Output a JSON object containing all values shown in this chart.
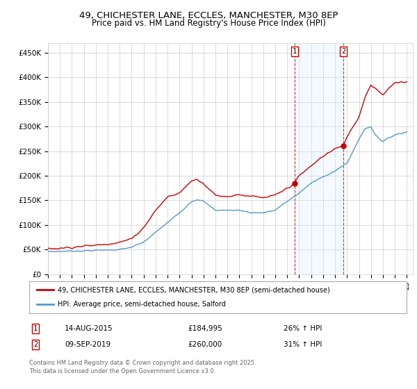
{
  "title": "49, CHICHESTER LANE, ECCLES, MANCHESTER, M30 8EP",
  "subtitle": "Price paid vs. HM Land Registry's House Price Index (HPI)",
  "ylabel_values": [
    "£0",
    "£50K",
    "£100K",
    "£150K",
    "£200K",
    "£250K",
    "£300K",
    "£350K",
    "£400K",
    "£450K"
  ],
  "yticks": [
    0,
    50000,
    100000,
    150000,
    200000,
    250000,
    300000,
    350000,
    400000,
    450000
  ],
  "ylim": [
    0,
    470000
  ],
  "xlim_start": 1995.0,
  "xlim_end": 2025.5,
  "purchase1_x": 2015.617,
  "purchase1_y": 184995,
  "purchase2_x": 2019.689,
  "purchase2_y": 260000,
  "purchase1_label": "14-AUG-2015",
  "purchase1_price": "£184,995",
  "purchase1_hpi": "26% ↑ HPI",
  "purchase2_label": "09-SEP-2019",
  "purchase2_price": "£260,000",
  "purchase2_hpi": "31% ↑ HPI",
  "legend_line1": "49, CHICHESTER LANE, ECCLES, MANCHESTER, M30 8EP (semi-detached house)",
  "legend_line2": "HPI: Average price, semi-detached house, Salford",
  "footer": "Contains HM Land Registry data © Crown copyright and database right 2025.\nThis data is licensed under the Open Government Licence v3.0.",
  "line_color_red": "#cc0000",
  "line_color_blue": "#5599cc",
  "shade_color": "#ddeeff",
  "background_color": "#ffffff",
  "grid_color": "#cccccc",
  "hpi_knots_x": [
    1995,
    1996,
    1997,
    1998,
    1999,
    2000,
    2001,
    2002,
    2003,
    2004,
    2005,
    2006,
    2007,
    2007.5,
    2008,
    2009,
    2010,
    2011,
    2012,
    2013,
    2014,
    2015,
    2016,
    2017,
    2018,
    2019,
    2020,
    2020.5,
    2021,
    2021.5,
    2022,
    2022.3,
    2022.7,
    2023,
    2023.5,
    2024,
    2025
  ],
  "hpi_knots_y": [
    46000,
    46500,
    47000,
    47500,
    48500,
    49500,
    50000,
    55000,
    65000,
    85000,
    105000,
    125000,
    148000,
    152000,
    148000,
    130000,
    130000,
    130000,
    125000,
    125000,
    130000,
    148000,
    165000,
    185000,
    198000,
    210000,
    225000,
    250000,
    275000,
    295000,
    300000,
    285000,
    275000,
    270000,
    278000,
    282000,
    290000
  ],
  "red_knots_x": [
    1995,
    1996,
    1997,
    1998,
    1999,
    2000,
    2001,
    2002,
    2003,
    2004,
    2005,
    2006,
    2007,
    2007.5,
    2008,
    2009,
    2010,
    2011,
    2012,
    2013,
    2014,
    2015,
    2015.617,
    2016,
    2017,
    2018,
    2019,
    2019.689,
    2020,
    2021,
    2021.5,
    2022,
    2022.5,
    2023,
    2023.5,
    2024,
    2025
  ],
  "red_knots_y": [
    52000,
    53000,
    55000,
    57000,
    59000,
    62000,
    65000,
    72000,
    95000,
    130000,
    157000,
    165000,
    190000,
    193000,
    185000,
    160000,
    158000,
    162000,
    158000,
    155000,
    160000,
    175000,
    184995,
    200000,
    220000,
    240000,
    255000,
    260000,
    280000,
    320000,
    360000,
    385000,
    375000,
    365000,
    378000,
    388000,
    390000
  ]
}
